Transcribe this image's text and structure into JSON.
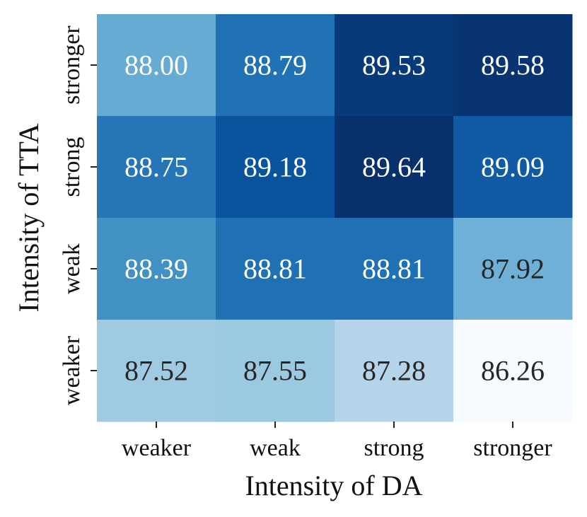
{
  "chart_data": {
    "type": "heatmap",
    "xlabel": "Intensity of DA",
    "ylabel": "Intensity of TTA",
    "x_categories": [
      "weaker",
      "weak",
      "strong",
      "stronger"
    ],
    "y_categories": [
      "stronger",
      "strong",
      "weak",
      "weaker"
    ],
    "values": [
      [
        88.0,
        88.79,
        89.53,
        89.58
      ],
      [
        88.75,
        89.18,
        89.64,
        89.09
      ],
      [
        88.39,
        88.81,
        88.81,
        87.92
      ],
      [
        87.52,
        87.55,
        87.28,
        86.26
      ]
    ],
    "labels": [
      [
        "88.00",
        "88.79",
        "89.53",
        "89.58"
      ],
      [
        "88.75",
        "89.18",
        "89.64",
        "89.09"
      ],
      [
        "88.39",
        "88.81",
        "88.81",
        "87.92"
      ],
      [
        "87.52",
        "87.55",
        "87.28",
        "86.26"
      ]
    ],
    "colormap": "Blues",
    "colorbar": false
  }
}
